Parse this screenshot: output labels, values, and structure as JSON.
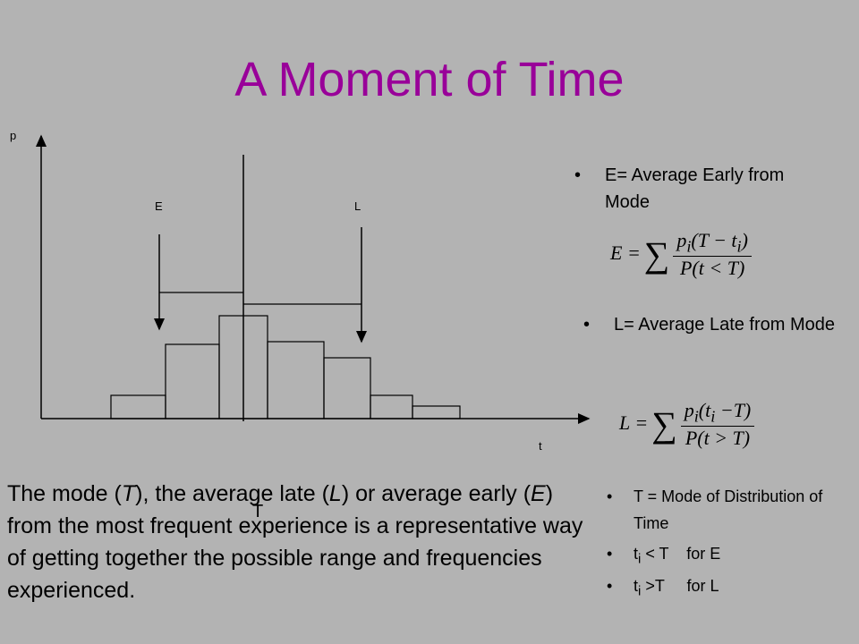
{
  "title": "A Moment of Time",
  "diagram": {
    "y_axis_label": "p",
    "x_axis_label": "t",
    "early_label": "E",
    "late_label": "L",
    "mode_label": "T"
  },
  "bullets_top": [
    "E= Average Early from Mode",
    "L= Average Late from Mode"
  ],
  "formula_early": {
    "lhs": "E =",
    "sum": "∑",
    "numerator": [
      "p",
      "i",
      "(T − t",
      "i",
      ")"
    ],
    "denominator": "P(t < T)"
  },
  "formula_late": {
    "lhs": "L =",
    "sum": "∑",
    "numerator": [
      "p",
      "i",
      "(t",
      "i",
      " −T)"
    ],
    "denominator": "P(t > T)"
  },
  "paragraph": [
    "The mode (",
    "T",
    "), the average late (",
    "L",
    ") or average early (",
    "E",
    ") from the most frequent experience is a representative way of getting together the possible range and frequencies experienced."
  ],
  "bullets_bottom": [
    [
      "T = Mode of Distribution of Time"
    ],
    [
      "t",
      "i",
      " < T    for E"
    ],
    [
      "t",
      "i",
      " >T     for L"
    ]
  ]
}
